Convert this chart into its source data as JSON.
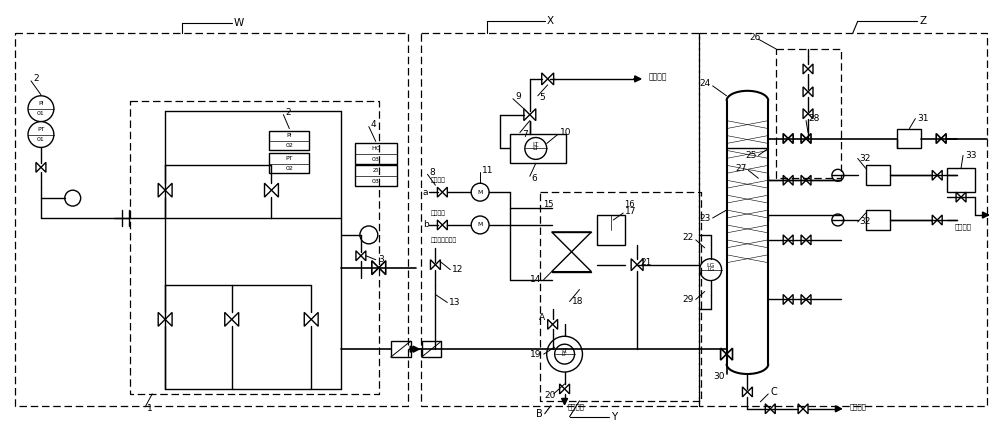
{
  "bg": "#ffffff",
  "lc": "#000000",
  "fig_w": 10.0,
  "fig_h": 4.37,
  "dpi": 100,
  "texts": {
    "inject_line": "注射管线",
    "exhaust_sw": "排气开关",
    "fill_sw": "注液开关",
    "hpglass": "高压玻璃视着管",
    "sand_line": "排砂管线",
    "drain_line": "排污管线",
    "gas_out": "气液混输",
    "W": "W",
    "X": "X",
    "Y": "Y",
    "Z": "Z"
  }
}
